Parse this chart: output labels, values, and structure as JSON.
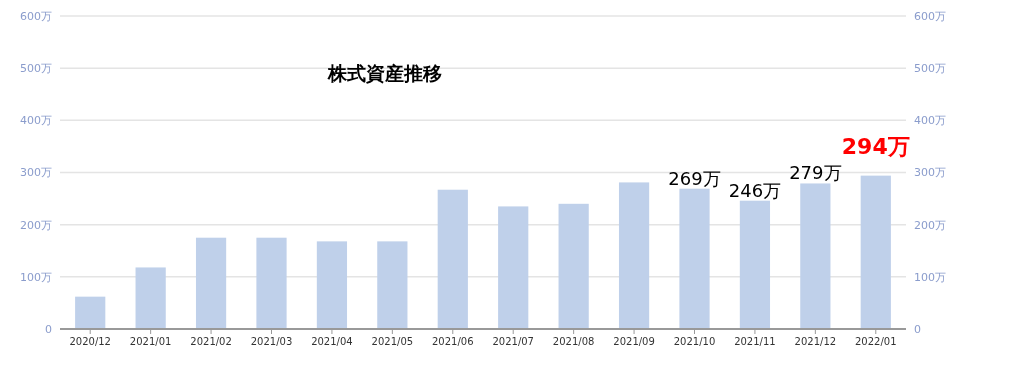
{
  "chart_data": {
    "type": "bar",
    "title": "株式資産推移",
    "categories": [
      "2020/12",
      "2021/01",
      "2021/02",
      "2021/03",
      "2021/04",
      "2021/05",
      "2021/06",
      "2021/07",
      "2021/08",
      "2021/09",
      "2021/10",
      "2021/11",
      "2021/12",
      "2022/01"
    ],
    "values": [
      62,
      118,
      175,
      175,
      168,
      168,
      267,
      235,
      240,
      281,
      269,
      246,
      279,
      294
    ],
    "value_labels": [
      null,
      null,
      null,
      null,
      null,
      null,
      null,
      null,
      null,
      null,
      "269万",
      "246万",
      "279万",
      "294万"
    ],
    "color": "#bfd0ea",
    "ylim": [
      0,
      600
    ],
    "yticks": [
      0,
      {
        "value": 100,
        "label": "100万"
      },
      {
        "value": 200,
        "label": "200万"
      },
      {
        "value": 300,
        "label": "300万"
      },
      {
        "value": 400,
        "label": "400万"
      },
      {
        "value": 500,
        "label": "500万"
      },
      {
        "value": 600,
        "label": "600万"
      }
    ],
    "y2lim": [
      0,
      600
    ],
    "y2ticks": [
      0,
      {
        "value": 100,
        "label": "100万"
      },
      {
        "value": 200,
        "label": "200万"
      },
      {
        "value": 300,
        "label": "300万"
      },
      {
        "value": 400,
        "label": "400万"
      },
      {
        "value": 500,
        "label": "500万"
      },
      {
        "value": 600,
        "label": "600万"
      }
    ],
    "grid": "y"
  }
}
